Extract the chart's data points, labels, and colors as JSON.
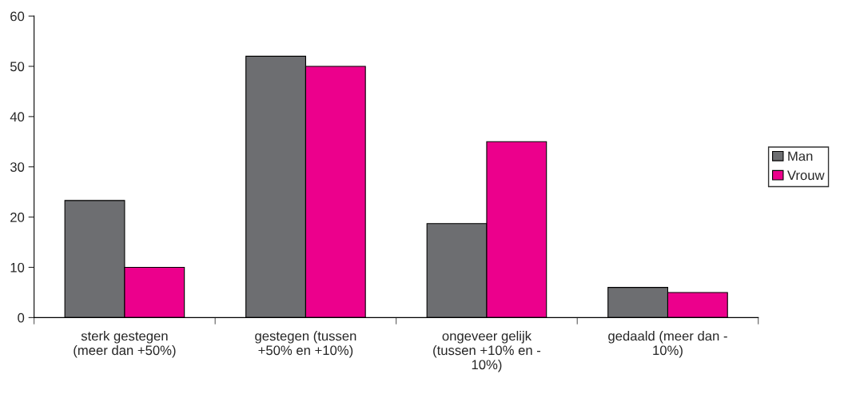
{
  "chart_data": {
    "type": "bar",
    "categories": [
      "sterk gestegen\n(meer dan +50%)",
      "gestegen (tussen\n+50% en +10%)",
      "ongeveer gelijk\n(tussen +10% en -\n10%)",
      "gedaald (meer dan -\n10%)"
    ],
    "series": [
      {
        "name": "Man",
        "color": "#6d6e71",
        "values": [
          23.3,
          52,
          18.7,
          6
        ]
      },
      {
        "name": "Vrouw",
        "color": "#ec008c",
        "values": [
          10,
          50,
          35,
          5
        ]
      }
    ],
    "ylim": [
      0,
      60
    ],
    "yticks": [
      0,
      10,
      20,
      30,
      40,
      50,
      60
    ],
    "grid": false,
    "legend": "right"
  }
}
